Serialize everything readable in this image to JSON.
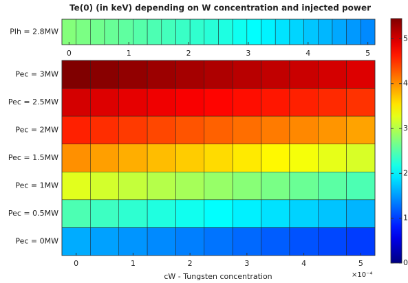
{
  "chart_data": {
    "type": "heatmap",
    "title": "Te(0) (in keV) depending on W concentration and injected power",
    "colormap": "jet",
    "clim": [
      0,
      5.45
    ],
    "cticks": [
      0,
      1,
      2,
      3,
      4,
      5
    ],
    "strip": {
      "rows": [
        "Plh = 2.8MW"
      ],
      "x": [
        0,
        0.238,
        0.476,
        0.714,
        0.952,
        1.19,
        1.429,
        1.667,
        1.905,
        2.143,
        2.381,
        2.619,
        2.857,
        3.095,
        3.333,
        3.571,
        3.81,
        4.048,
        4.286,
        4.524,
        4.762,
        5
      ],
      "xlim": [
        -0.119,
        5.119
      ],
      "xticks": [
        0,
        1,
        2,
        3,
        4,
        5
      ],
      "values": [
        [
          2.75,
          2.7,
          2.65,
          2.6,
          2.55,
          2.5,
          2.45,
          2.4,
          2.35,
          2.3,
          2.25,
          2.2,
          2.12,
          2.05,
          1.98,
          1.9,
          1.82,
          1.74,
          1.66,
          1.58,
          1.5,
          1.42
        ]
      ]
    },
    "main": {
      "rows": [
        "Pec = 3MW",
        "Pec = 2.5MW",
        "Pec = 2MW",
        "Pec = 1.5MW",
        "Pec = 1MW",
        "Pec = 0.5MW",
        "Pec = 0MW"
      ],
      "x": [
        0,
        0.5,
        1,
        1.5,
        2,
        2.5,
        3,
        3.5,
        4,
        4.5,
        5
      ],
      "xlim": [
        -0.25,
        5.25
      ],
      "xticks": [
        0,
        1,
        2,
        3,
        4,
        5
      ],
      "xlabel": "cW - Tungsten concentration",
      "x_exponent": "×10⁻⁴",
      "values": [
        [
          5.45,
          5.4,
          5.35,
          5.3,
          5.25,
          5.2,
          5.15,
          5.1,
          5.05,
          5.0,
          4.95
        ],
        [
          5.0,
          4.95,
          4.9,
          4.85,
          4.8,
          4.75,
          4.7,
          4.65,
          4.6,
          4.55,
          4.5
        ],
        [
          4.6,
          4.53,
          4.46,
          4.39,
          4.32,
          4.25,
          4.18,
          4.11,
          4.04,
          3.97,
          3.9
        ],
        [
          4.0,
          3.92,
          3.84,
          3.76,
          3.68,
          3.6,
          3.52,
          3.44,
          3.36,
          3.28,
          3.2
        ],
        [
          3.25,
          3.17,
          3.09,
          3.01,
          2.93,
          2.85,
          2.77,
          2.69,
          2.61,
          2.53,
          2.45
        ],
        [
          2.45,
          2.37,
          2.29,
          2.21,
          2.13,
          2.05,
          1.97,
          1.89,
          1.81,
          1.73,
          1.65
        ],
        [
          1.6,
          1.54,
          1.48,
          1.42,
          1.36,
          1.3,
          1.24,
          1.18,
          1.12,
          1.06,
          1.0
        ]
      ]
    }
  }
}
